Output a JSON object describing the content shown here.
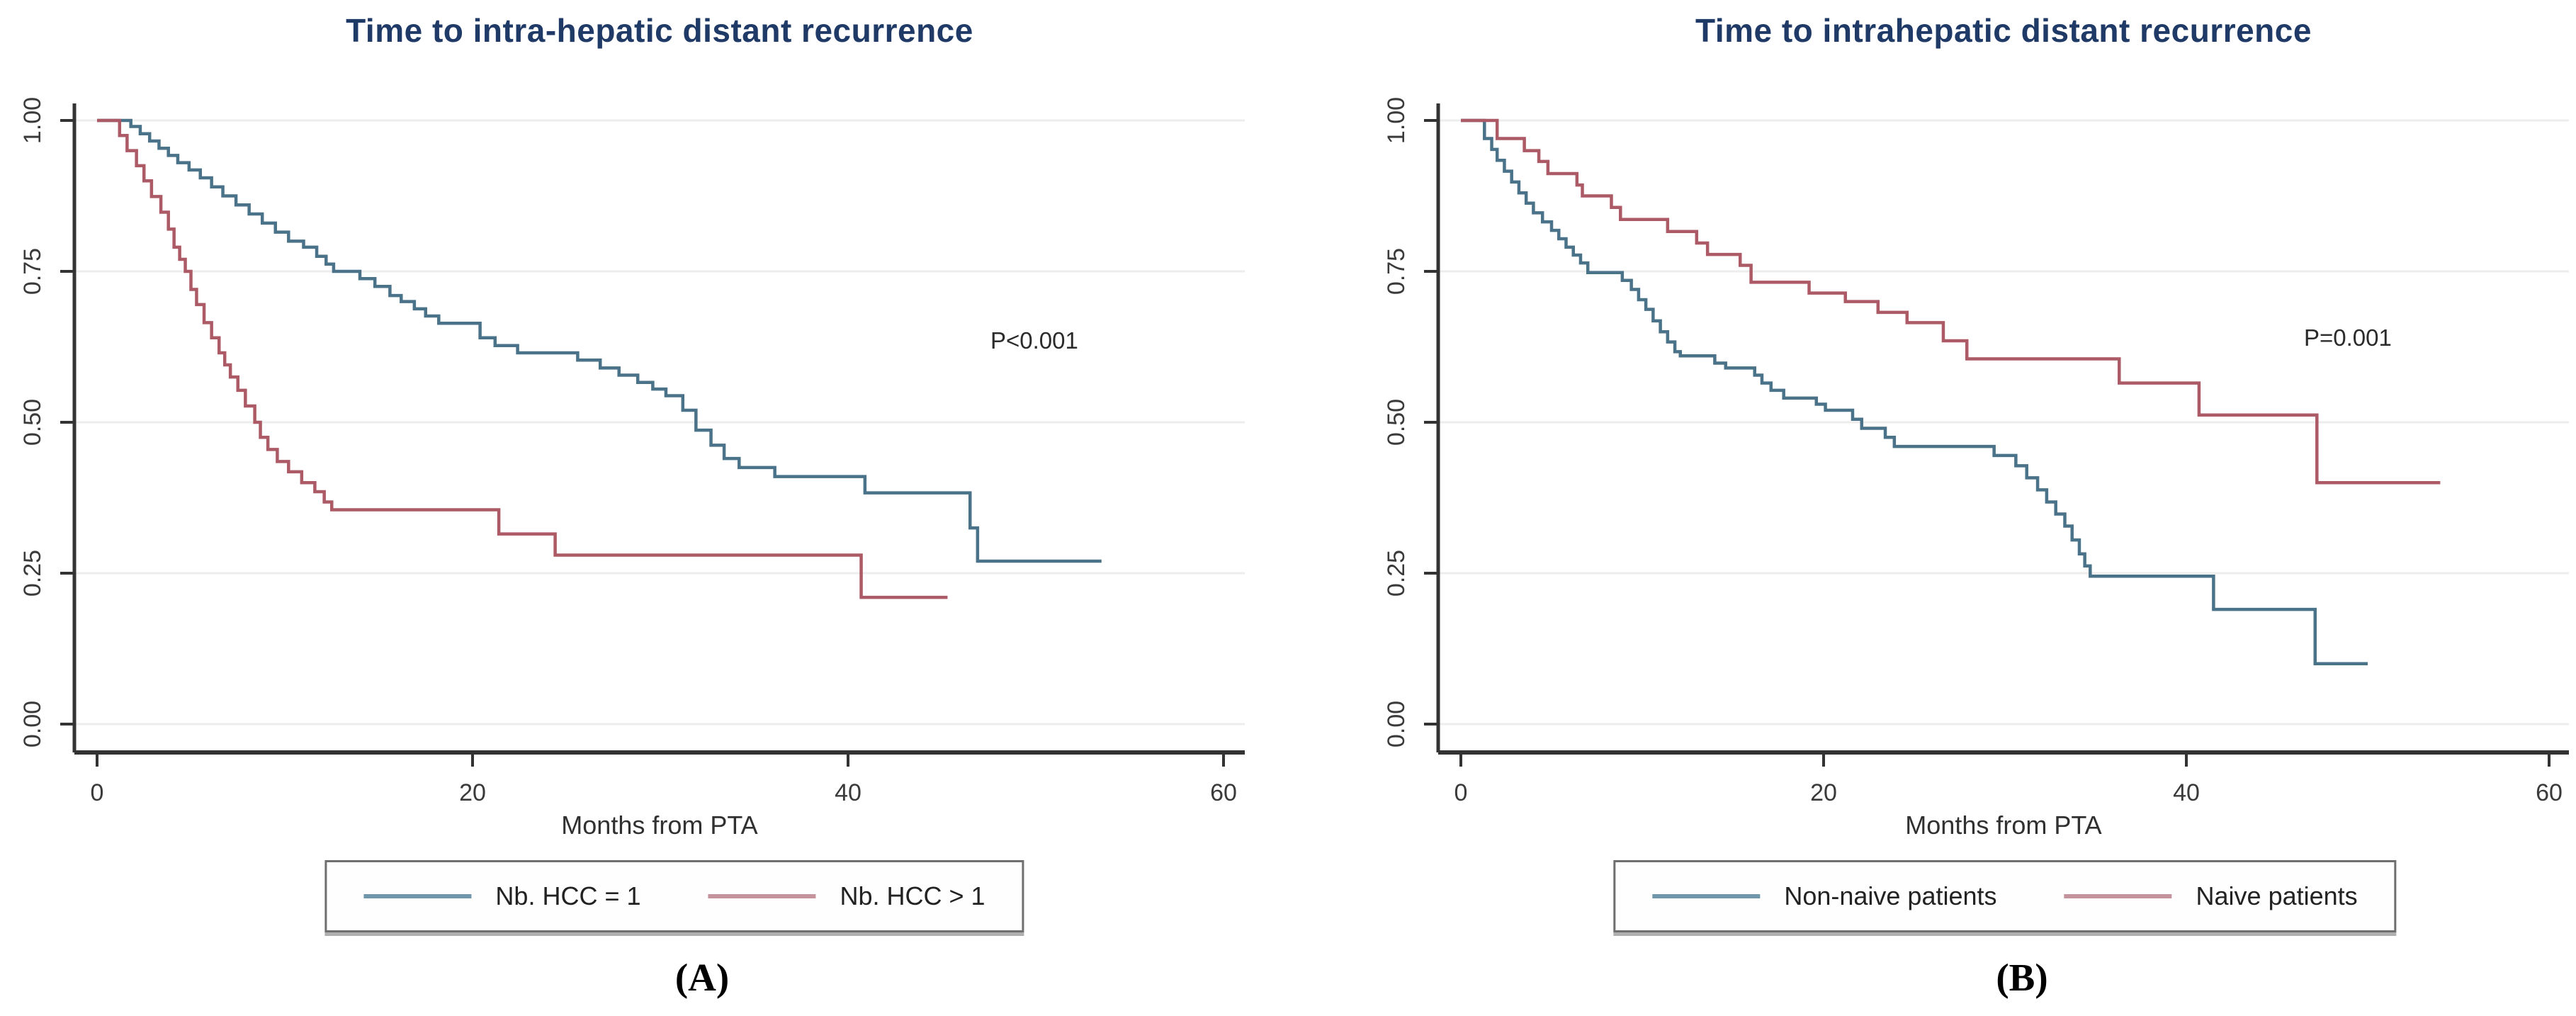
{
  "figure": {
    "background": "#ffffff",
    "title_color": "#1f3a66",
    "axis_color": "#303030",
    "grid_color": "#ededed",
    "panel_labels": [
      "(A)",
      "(B)"
    ]
  },
  "chart_data": [
    {
      "type": "line",
      "variant": "kaplan-meier-step",
      "panel": "A",
      "title": "Time to intra-hepatic distant recurrence",
      "xlabel": "Months from PTA",
      "ylabel": "",
      "xlim": [
        0,
        60
      ],
      "ylim": [
        0.0,
        1.0
      ],
      "x_ticks": [
        0,
        20,
        40,
        60
      ],
      "y_ticks": [
        {
          "v": 0.0,
          "label": "0.00"
        },
        {
          "v": 0.25,
          "label": "0.25"
        },
        {
          "v": 0.5,
          "label": "0.50"
        },
        {
          "v": 0.75,
          "label": "0.75"
        },
        {
          "v": 1.0,
          "label": "1.00"
        }
      ],
      "grid": "horizontal",
      "legend_position": "bottom",
      "annotation": {
        "text": "P<0.001"
      },
      "series": [
        {
          "name": "Nb. HCC = 1",
          "color": "#4a7289",
          "legend_color": "#6f96ab",
          "end": 53.5,
          "points": [
            [
              0,
              1.0
            ],
            [
              1.8,
              0.99
            ],
            [
              2.3,
              0.978
            ],
            [
              2.8,
              0.966
            ],
            [
              3.3,
              0.954
            ],
            [
              3.8,
              0.942
            ],
            [
              4.3,
              0.93
            ],
            [
              4.9,
              0.918
            ],
            [
              5.5,
              0.905
            ],
            [
              6.1,
              0.89
            ],
            [
              6.7,
              0.875
            ],
            [
              7.4,
              0.86
            ],
            [
              8.1,
              0.845
            ],
            [
              8.8,
              0.83
            ],
            [
              9.5,
              0.815
            ],
            [
              10.2,
              0.8
            ],
            [
              11.0,
              0.79
            ],
            [
              11.7,
              0.775
            ],
            [
              12.2,
              0.762
            ],
            [
              12.6,
              0.75
            ],
            [
              14.0,
              0.738
            ],
            [
              14.8,
              0.725
            ],
            [
              15.6,
              0.71
            ],
            [
              16.2,
              0.7
            ],
            [
              16.9,
              0.688
            ],
            [
              17.5,
              0.676
            ],
            [
              18.2,
              0.664
            ],
            [
              20.4,
              0.64
            ],
            [
              21.2,
              0.627
            ],
            [
              22.4,
              0.615
            ],
            [
              25.6,
              0.603
            ],
            [
              26.8,
              0.59
            ],
            [
              27.8,
              0.578
            ],
            [
              28.8,
              0.566
            ],
            [
              29.6,
              0.555
            ],
            [
              30.3,
              0.544
            ],
            [
              31.2,
              0.52
            ],
            [
              31.9,
              0.487
            ],
            [
              32.7,
              0.462
            ],
            [
              33.4,
              0.44
            ],
            [
              34.2,
              0.425
            ],
            [
              36.1,
              0.41
            ],
            [
              40.9,
              0.383
            ],
            [
              46.5,
              0.325
            ],
            [
              46.9,
              0.27
            ]
          ]
        },
        {
          "name": "Nb. HCC > 1",
          "color": "#ac5a65",
          "legend_color": "#c4939c",
          "end": 45.3,
          "points": [
            [
              0,
              1.0
            ],
            [
              1.2,
              0.975
            ],
            [
              1.6,
              0.95
            ],
            [
              2.1,
              0.925
            ],
            [
              2.5,
              0.9
            ],
            [
              2.9,
              0.874
            ],
            [
              3.4,
              0.848
            ],
            [
              3.8,
              0.82
            ],
            [
              4.1,
              0.79
            ],
            [
              4.4,
              0.77
            ],
            [
              4.7,
              0.75
            ],
            [
              5.0,
              0.72
            ],
            [
              5.3,
              0.695
            ],
            [
              5.7,
              0.665
            ],
            [
              6.1,
              0.64
            ],
            [
              6.5,
              0.615
            ],
            [
              6.8,
              0.595
            ],
            [
              7.1,
              0.575
            ],
            [
              7.5,
              0.553
            ],
            [
              7.9,
              0.527
            ],
            [
              8.4,
              0.5
            ],
            [
              8.7,
              0.475
            ],
            [
              9.1,
              0.455
            ],
            [
              9.6,
              0.435
            ],
            [
              10.2,
              0.418
            ],
            [
              10.9,
              0.4
            ],
            [
              11.6,
              0.385
            ],
            [
              12.1,
              0.368
            ],
            [
              12.5,
              0.355
            ],
            [
              21.4,
              0.315
            ],
            [
              24.4,
              0.28
            ],
            [
              40.7,
              0.21
            ]
          ]
        }
      ]
    },
    {
      "type": "line",
      "variant": "kaplan-meier-step",
      "panel": "B",
      "title": "Time to intrahepatic distant recurrence",
      "xlabel": "Months from PTA",
      "ylabel": "",
      "xlim": [
        0,
        60
      ],
      "ylim": [
        0.0,
        1.0
      ],
      "x_ticks": [
        0,
        20,
        40,
        60
      ],
      "y_ticks": [
        {
          "v": 0.0,
          "label": "0.00"
        },
        {
          "v": 0.25,
          "label": "0.25"
        },
        {
          "v": 0.5,
          "label": "0.50"
        },
        {
          "v": 0.75,
          "label": "0.75"
        },
        {
          "v": 1.0,
          "label": "1.00"
        }
      ],
      "grid": "horizontal",
      "legend_position": "bottom",
      "annotation": {
        "text": "P=0.001"
      },
      "series": [
        {
          "name": "Non-naive patients",
          "color": "#4a7289",
          "legend_color": "#6f96ab",
          "end": 50.0,
          "points": [
            [
              0,
              1.0
            ],
            [
              1.3,
              0.97
            ],
            [
              1.7,
              0.952
            ],
            [
              2.0,
              0.934
            ],
            [
              2.4,
              0.916
            ],
            [
              2.8,
              0.898
            ],
            [
              3.2,
              0.88
            ],
            [
              3.6,
              0.863
            ],
            [
              4.0,
              0.847
            ],
            [
              4.5,
              0.832
            ],
            [
              5.0,
              0.818
            ],
            [
              5.4,
              0.804
            ],
            [
              5.8,
              0.79
            ],
            [
              6.2,
              0.777
            ],
            [
              6.6,
              0.764
            ],
            [
              7.0,
              0.748
            ],
            [
              8.9,
              0.735
            ],
            [
              9.4,
              0.72
            ],
            [
              9.8,
              0.703
            ],
            [
              10.2,
              0.687
            ],
            [
              10.6,
              0.668
            ],
            [
              11.0,
              0.65
            ],
            [
              11.4,
              0.633
            ],
            [
              11.8,
              0.617
            ],
            [
              12.1,
              0.61
            ],
            [
              14.0,
              0.598
            ],
            [
              14.6,
              0.59
            ],
            [
              16.2,
              0.578
            ],
            [
              16.6,
              0.565
            ],
            [
              17.1,
              0.553
            ],
            [
              17.8,
              0.54
            ],
            [
              19.6,
              0.53
            ],
            [
              20.1,
              0.52
            ],
            [
              21.6,
              0.505
            ],
            [
              22.1,
              0.49
            ],
            [
              23.4,
              0.475
            ],
            [
              23.9,
              0.46
            ],
            [
              29.4,
              0.445
            ],
            [
              30.6,
              0.428
            ],
            [
              31.2,
              0.408
            ],
            [
              31.8,
              0.388
            ],
            [
              32.3,
              0.368
            ],
            [
              32.8,
              0.348
            ],
            [
              33.3,
              0.328
            ],
            [
              33.7,
              0.305
            ],
            [
              34.1,
              0.282
            ],
            [
              34.4,
              0.262
            ],
            [
              34.7,
              0.245
            ],
            [
              41.5,
              0.19
            ],
            [
              47.1,
              0.1
            ]
          ]
        },
        {
          "name": "Naive patients",
          "color": "#ac5a65",
          "legend_color": "#c4939c",
          "end": 54.0,
          "points": [
            [
              0,
              1.0
            ],
            [
              2.0,
              0.97
            ],
            [
              3.5,
              0.95
            ],
            [
              4.3,
              0.932
            ],
            [
              4.8,
              0.912
            ],
            [
              6.4,
              0.893
            ],
            [
              6.7,
              0.875
            ],
            [
              8.3,
              0.856
            ],
            [
              8.8,
              0.836
            ],
            [
              11.4,
              0.816
            ],
            [
              13.0,
              0.797
            ],
            [
              13.6,
              0.778
            ],
            [
              15.4,
              0.76
            ],
            [
              16.0,
              0.732
            ],
            [
              19.2,
              0.714
            ],
            [
              21.2,
              0.7
            ],
            [
              23.0,
              0.682
            ],
            [
              24.6,
              0.665
            ],
            [
              26.6,
              0.635
            ],
            [
              27.9,
              0.605
            ],
            [
              36.3,
              0.565
            ],
            [
              40.7,
              0.512
            ],
            [
              47.2,
              0.4
            ]
          ]
        }
      ]
    }
  ]
}
